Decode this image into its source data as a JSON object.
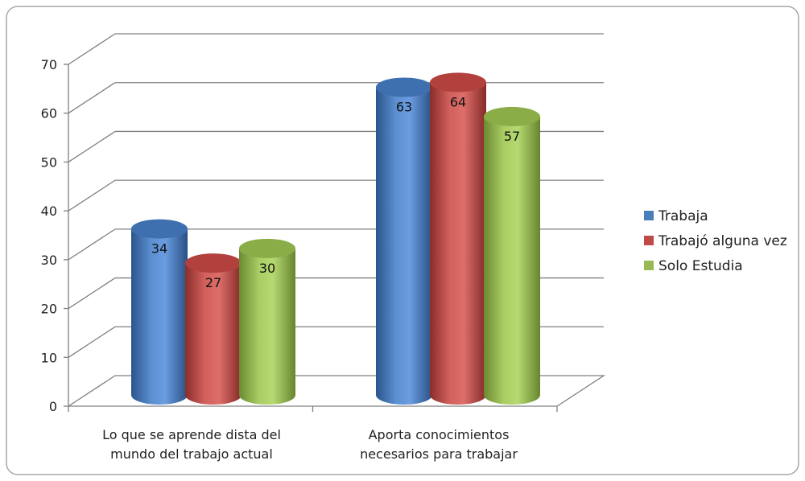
{
  "chart_data": {
    "type": "bar",
    "title": "",
    "xlabel": "",
    "ylabel": "",
    "categories": [
      [
        "Lo que se aprende dista del",
        "mundo del trabajo actual"
      ],
      [
        "Aporta conocimientos",
        "necesarios para trabajar"
      ]
    ],
    "series": [
      {
        "name": "Trabaja",
        "values": [
          34,
          63
        ],
        "color": "#4a7ebb"
      },
      {
        "name": "Trabajó alguna vez",
        "values": [
          27,
          64
        ],
        "color": "#be4b48"
      },
      {
        "name": "Solo Estudia",
        "values": [
          30,
          57
        ],
        "color": "#98b954"
      }
    ],
    "ylim": [
      0,
      70
    ],
    "yticks": [
      0,
      10,
      20,
      30,
      40,
      50,
      60,
      70
    ],
    "grid": true,
    "legend_position": "right",
    "data_labels": true
  }
}
